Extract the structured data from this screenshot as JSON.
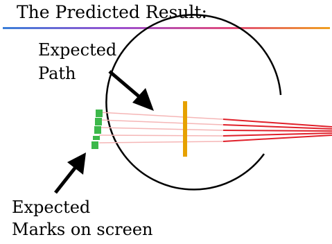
{
  "title": "The Predicted Result:",
  "labels": {
    "expected_path_line1": "Expected",
    "expected_path_line2": "Path",
    "expected_marks_line1": "Expected",
    "expected_marks_line2": "Marks on screen"
  },
  "colors": {
    "title_underline_gradient": [
      "#3a7fd9",
      "#9a4fd0",
      "#e24a7a",
      "#f0a020"
    ],
    "circle": "#000000",
    "lens": "#e6a100",
    "beam_outside": "#e0202a",
    "beam_inside": "#f5b6b6",
    "screen_marks": "#3cb84a",
    "arrows": "#000000"
  },
  "icons": [
    "arrow-icon",
    "arrow-icon"
  ]
}
